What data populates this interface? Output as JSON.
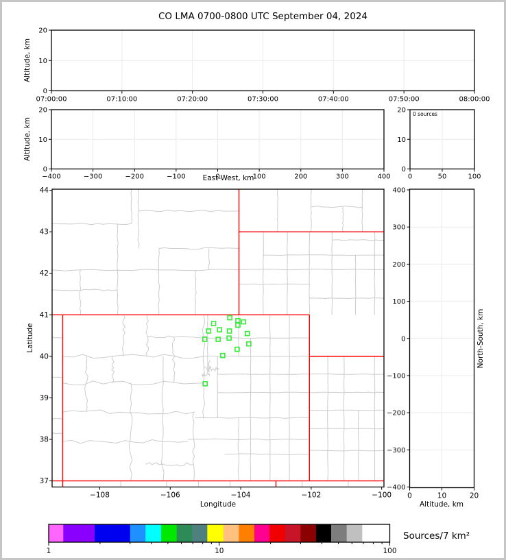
{
  "title": "CO LMA 0700-0800 UTC September 04, 2024",
  "colors": {
    "state_border": "#ff0000",
    "county_line": "#cccccc",
    "station_marker": "#33ee33",
    "gridline": "#ebebeb",
    "axis": "#000000"
  },
  "panels": {
    "time_height": {
      "ylabel": "Altitude, km",
      "yticks": [
        "0",
        "10",
        "20"
      ],
      "xticks": [
        "07:00:00",
        "07:10:00",
        "07:20:00",
        "07:30:00",
        "07:40:00",
        "07:50:00",
        "08:00:00"
      ]
    },
    "ew_height": {
      "ylabel": "Altitude, km",
      "xlabel": "East-West, km",
      "yticks": [
        "0",
        "10",
        "20"
      ],
      "xticks": [
        "−400",
        "−300",
        "−200",
        "−100",
        "0",
        "100",
        "200",
        "300",
        "400"
      ]
    },
    "histogram": {
      "annotation": "0 sources",
      "yticks": [
        "0",
        "10",
        "20"
      ],
      "xticks": [
        "0",
        "50",
        "100"
      ]
    },
    "map": {
      "ylabel": "Latitude",
      "xlabel": "Longitude",
      "yticks": [
        "37",
        "38",
        "39",
        "40",
        "41",
        "42",
        "43",
        "44"
      ],
      "xticks": [
        "−108",
        "−106",
        "−104",
        "−102",
        "−100"
      ]
    },
    "ns_height": {
      "xlabel": "Altitude, km",
      "ylabel_right": "North-South, km",
      "yticks": [
        "400",
        "300",
        "200",
        "100",
        "0",
        "−100",
        "−200",
        "−300",
        "−400"
      ],
      "xticks": [
        "0",
        "10",
        "20"
      ]
    }
  },
  "colorbar": {
    "label": "Sources/7 km²",
    "ticks": [
      "1",
      "10",
      "100"
    ],
    "scale": "log",
    "range": [
      1,
      100
    ],
    "colors": [
      "#ff66ff",
      "#8a00ff",
      "#0000f0",
      "#1e90ff",
      "#00ffff",
      "#00e800",
      "#2e8b57",
      "#4e8080",
      "#ffff00",
      "#ffc080",
      "#ff8000",
      "#ff0090",
      "#f00000",
      "#c81428",
      "#8b0000",
      "#000000",
      "#7d7d7d",
      "#c0c0c0",
      "#ffffff"
    ],
    "boundaries": [
      0,
      0.0428,
      0.1347,
      0.2386,
      0.284,
      0.3297,
      0.3753,
      0.4207,
      0.465,
      0.512,
      0.5574,
      0.603,
      0.6472,
      0.6928,
      0.7383,
      0.7839,
      0.8281,
      0.8737,
      0.9192,
      1
    ]
  },
  "chart_data": [
    {
      "type": "scatter",
      "panel": "altitude_vs_time",
      "xlim": [
        "07:00:00",
        "08:00:00"
      ],
      "ylim": [
        0,
        20
      ],
      "ylabel": "Altitude, km",
      "points": []
    },
    {
      "type": "scatter",
      "panel": "altitude_vs_east_west",
      "xlim": [
        -400,
        400
      ],
      "ylim": [
        0,
        20
      ],
      "xlabel": "East-West, km",
      "ylabel": "Altitude, km",
      "points": []
    },
    {
      "type": "histogram",
      "panel": "source_count",
      "annotation": "0 sources",
      "xlim": [
        0,
        100
      ],
      "ylim": [
        0,
        20
      ],
      "values": []
    },
    {
      "type": "scatter",
      "panel": "map",
      "xlabel": "Longitude",
      "ylabel": "Latitude",
      "xlim": [
        -109.35,
        -99.94
      ],
      "ylim": [
        36.85,
        44.03
      ],
      "lma_stations_lon_lat": [
        [
          -104.31,
          40.93
        ],
        [
          -104.08,
          40.86
        ],
        [
          -103.92,
          40.83
        ],
        [
          -104.77,
          40.79
        ],
        [
          -104.08,
          40.75
        ],
        [
          -104.6,
          40.64
        ],
        [
          -104.91,
          40.61
        ],
        [
          -104.32,
          40.61
        ],
        [
          -103.81,
          40.55
        ],
        [
          -105.02,
          40.41
        ],
        [
          -104.64,
          40.41
        ],
        [
          -104.33,
          40.44
        ],
        [
          -103.77,
          40.3
        ],
        [
          -104.1,
          40.17
        ],
        [
          -104.51,
          40.02
        ],
        [
          -105.01,
          39.34
        ]
      ],
      "state_border_segments": [
        [
          -109.35,
          41.0,
          -102.05,
          41.0
        ],
        [
          -109.05,
          41.0,
          -109.05,
          36.85
        ],
        [
          -109.35,
          37.0,
          -99.94,
          37.0
        ],
        [
          -104.05,
          44.03,
          -104.05,
          41.0
        ],
        [
          -104.05,
          43.0,
          -99.94,
          43.0
        ],
        [
          -102.05,
          41.0,
          -102.05,
          37.0
        ],
        [
          -102.05,
          40.0,
          -99.94,
          40.0
        ],
        [
          -103.0,
          37.0,
          -103.0,
          36.85
        ]
      ],
      "sources": []
    },
    {
      "type": "scatter",
      "panel": "north_south_vs_altitude",
      "xlim": [
        0,
        20
      ],
      "ylim": [
        -400,
        400
      ],
      "xlabel": "Altitude, km",
      "ylabel": "North-South, km",
      "points": []
    },
    {
      "type": "colorbar",
      "label": "Sources/7 km²",
      "scale": "log",
      "range": [
        1,
        100
      ]
    }
  ]
}
